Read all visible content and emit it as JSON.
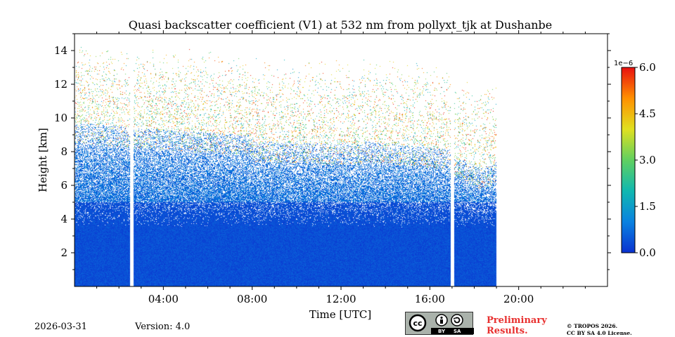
{
  "chart_data": {
    "type": "heatmap",
    "title": "Quasi backscatter coefficient (V1) at 532 nm from pollyxt_tjk at Dushanbe",
    "xlabel": "Time [UTC]",
    "ylabel": "Height [km]",
    "xlim_hours": [
      0,
      24
    ],
    "ylim_km": [
      0,
      15
    ],
    "x_ticks": [
      {
        "value": 4,
        "label": "04:00"
      },
      {
        "value": 8,
        "label": "08:00"
      },
      {
        "value": 12,
        "label": "12:00"
      },
      {
        "value": 16,
        "label": "16:00"
      },
      {
        "value": 20,
        "label": "20:00"
      }
    ],
    "y_ticks": [
      {
        "value": 2,
        "label": "2"
      },
      {
        "value": 4,
        "label": "4"
      },
      {
        "value": 6,
        "label": "6"
      },
      {
        "value": 8,
        "label": "8"
      },
      {
        "value": 10,
        "label": "10"
      },
      {
        "value": 12,
        "label": "12"
      },
      {
        "value": 14,
        "label": "14"
      }
    ],
    "colorbar": {
      "scale_label": "1e−6",
      "range": [
        0.0,
        6.0
      ],
      "ticks": [
        {
          "value": 0.0,
          "label": "0.0"
        },
        {
          "value": 1.5,
          "label": "1.5"
        },
        {
          "value": 3.0,
          "label": "3.0"
        },
        {
          "value": 4.5,
          "label": "4.5"
        },
        {
          "value": 6.0,
          "label": "6.0"
        }
      ],
      "colormap": [
        "#0a32d0",
        "#0a82e0",
        "#10b8b0",
        "#60d060",
        "#e0e020",
        "#ff9000",
        "#e81010"
      ]
    },
    "data_gaps_hours": [
      [
        2.5,
        2.65
      ],
      [
        16.95,
        17.1
      ]
    ],
    "data_end_hour": 19.0
  },
  "footer": {
    "date": "2026-03-31",
    "version": "Version: 4.0",
    "preliminary_line1": "Preliminary",
    "preliminary_line2": "Results.",
    "license_line1": "© TROPOS 2026.",
    "license_line2": "CC BY SA 4.0 License.",
    "badge_by": "BY",
    "badge_sa": "SA",
    "badge_cc": "cc"
  }
}
